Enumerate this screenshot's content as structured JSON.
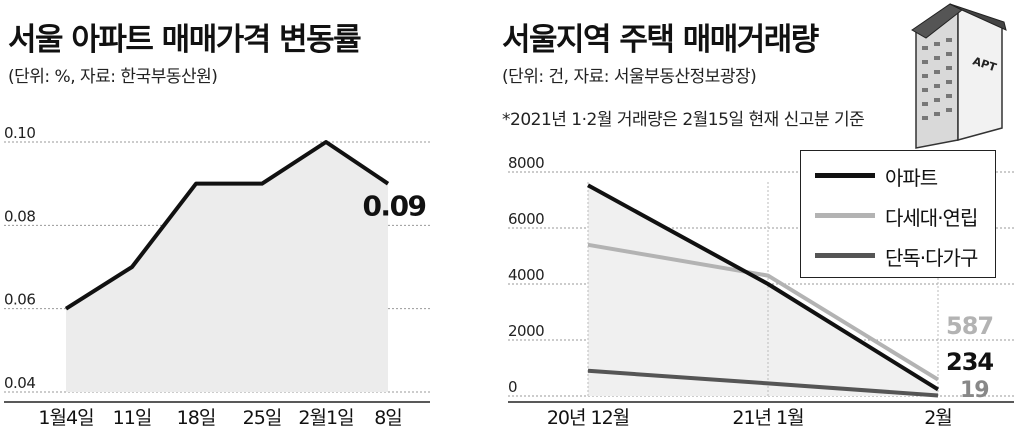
{
  "left": {
    "title": "서울 아파트 매매가격 변동률",
    "source": "(단위: %, 자료: 한국부동산원)"
  },
  "right": {
    "title": "서울지역 주택 매매거래량",
    "source": "(단위: 건, 자료: 서울부동산정보광장)",
    "note": "*2021년 1·2월 거래량은 2월15일 현재 신고분 기준",
    "building_label": "APT"
  },
  "chart_data": [
    {
      "type": "area",
      "title": "서울 아파트 매매가격 변동률",
      "categories": [
        "1월4일",
        "11일",
        "18일",
        "25일",
        "2월1일",
        "8일"
      ],
      "series": [
        {
          "values": [
            0.06,
            0.07,
            0.09,
            0.09,
            0.1,
            0.09
          ]
        }
      ],
      "ylim": [
        0.04,
        0.1
      ],
      "yticks": [
        "0.10",
        "0.08",
        "0.06",
        "0.04"
      ],
      "end_label": "0.09",
      "grid": true,
      "colors": {
        "line": "#111111",
        "fill": "#ececec",
        "grid": "#9a9a9a"
      }
    },
    {
      "type": "line",
      "title": "서울지역 주택 매매거래량",
      "categories": [
        "20년 12월",
        "21년 1월",
        "2월"
      ],
      "ylim": [
        0,
        8000
      ],
      "yticks": [
        "8000",
        "6000",
        "4000",
        "2000",
        "0"
      ],
      "series": [
        {
          "name": "아파트",
          "values": [
            7526,
            4000,
            234
          ],
          "color": "#111111",
          "end_label": "234"
        },
        {
          "name": "다세대·연립",
          "values": [
            5400,
            4300,
            587
          ],
          "color": "#b3b3b3",
          "end_label": "587"
        },
        {
          "name": "단독·다가구",
          "values": [
            900,
            450,
            19
          ],
          "color": "#555555",
          "end_label": "19"
        }
      ],
      "legend_position": "top-right",
      "grid": true
    }
  ]
}
